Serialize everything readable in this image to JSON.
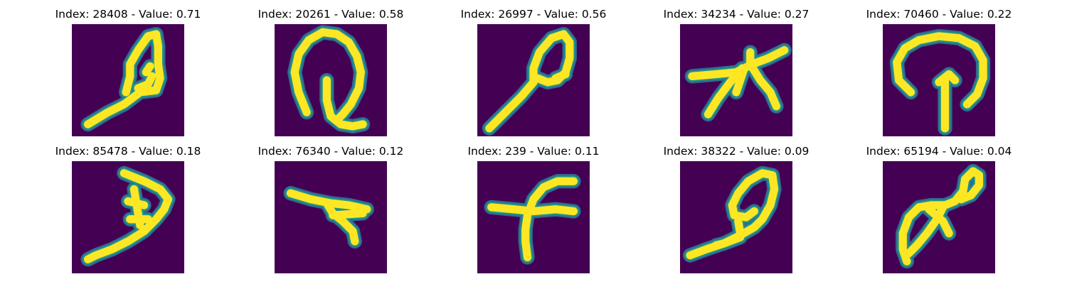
{
  "colors": {
    "background": "#440154",
    "stroke": "#fde725",
    "edge": "#21918c",
    "edge_dark": "#31688e",
    "edge_light": "#5ec962"
  },
  "samples": [
    {
      "title": "Index: 28408 - Value: 0.71",
      "index": 28408,
      "value": 0.71
    },
    {
      "title": "Index: 20261 - Value: 0.58",
      "index": 20261,
      "value": 0.58
    },
    {
      "title": "Index: 26997 - Value: 0.56",
      "index": 26997,
      "value": 0.56
    },
    {
      "title": "Index: 34234 - Value: 0.27",
      "index": 34234,
      "value": 0.27
    },
    {
      "title": "Index: 70460 - Value: 0.22",
      "index": 70460,
      "value": 0.22
    },
    {
      "title": "Index: 85478 - Value: 0.18",
      "index": 85478,
      "value": 0.18
    },
    {
      "title": "Index: 76340 - Value: 0.12",
      "index": 76340,
      "value": 0.12
    },
    {
      "title": "Index: 239 - Value: 0.11",
      "index": 239,
      "value": 0.11
    },
    {
      "title": "Index: 38322 - Value: 0.09",
      "index": 38322,
      "value": 0.09
    },
    {
      "title": "Index: 65194 - Value: 0.04",
      "index": 65194,
      "value": 0.04
    }
  ]
}
